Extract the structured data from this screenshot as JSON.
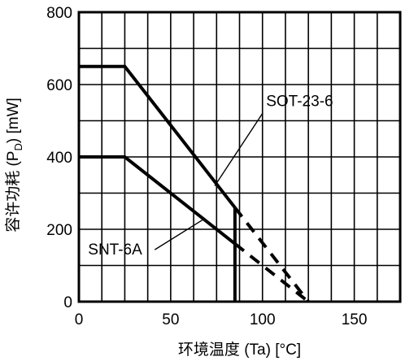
{
  "chart_data": {
    "type": "line",
    "xlabel": "环境温度 (Ta) [°C]",
    "ylabel_main": "容许功耗 (P",
    "ylabel_sub": "D",
    "ylabel_tail": ") [mW]",
    "xlim": [
      0,
      175
    ],
    "ylim": [
      0,
      800
    ],
    "x_ticks": [
      0,
      50,
      100,
      150
    ],
    "y_ticks": [
      0,
      200,
      400,
      600,
      800
    ],
    "x_tick_labels": [
      "0",
      "50",
      "100",
      "150"
    ],
    "y_tick_labels": [
      "0",
      "200",
      "400",
      "600",
      "800"
    ],
    "grid": true,
    "series": [
      {
        "name": "SOT-23-6",
        "solid": [
          [
            0,
            650
          ],
          [
            25,
            650
          ],
          [
            85,
            260
          ]
        ],
        "dashed": [
          [
            85,
            260
          ],
          [
            125,
            0
          ]
        ],
        "drop": [
          [
            85,
            260
          ],
          [
            85,
            0
          ]
        ]
      },
      {
        "name": "SNT-6A",
        "solid": [
          [
            0,
            400
          ],
          [
            25,
            400
          ],
          [
            85,
            160
          ]
        ],
        "dashed": [
          [
            85,
            160
          ],
          [
            125,
            0
          ]
        ],
        "drop": []
      }
    ],
    "annotations": [
      {
        "text": "SOT-23-6",
        "label_at": [
          102,
          540
        ],
        "leader_to": [
          74,
          320
        ]
      },
      {
        "text": "SNT-6A",
        "label_at": [
          5,
          130
        ],
        "leader_to": [
          68,
          228
        ]
      }
    ]
  }
}
